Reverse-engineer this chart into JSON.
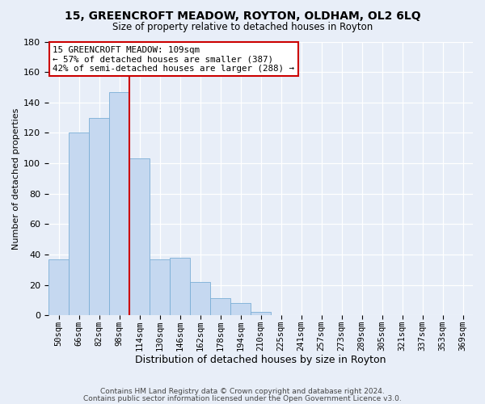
{
  "title1": "15, GREENCROFT MEADOW, ROYTON, OLDHAM, OL2 6LQ",
  "title2": "Size of property relative to detached houses in Royton",
  "xlabel": "Distribution of detached houses by size in Royton",
  "ylabel": "Number of detached properties",
  "categories": [
    "50sqm",
    "66sqm",
    "82sqm",
    "98sqm",
    "114sqm",
    "130sqm",
    "146sqm",
    "162sqm",
    "178sqm",
    "194sqm",
    "210sqm",
    "225sqm",
    "241sqm",
    "257sqm",
    "273sqm",
    "289sqm",
    "305sqm",
    "321sqm",
    "337sqm",
    "353sqm",
    "369sqm"
  ],
  "values": [
    37,
    120,
    130,
    147,
    103,
    37,
    38,
    22,
    11,
    8,
    2,
    0,
    0,
    0,
    0,
    0,
    0,
    0,
    0,
    0,
    0
  ],
  "bar_color": "#c5d8f0",
  "bar_edge_color": "#7aaed6",
  "vline_x": 3.5,
  "vline_color": "#cc0000",
  "annotation_line1": "15 GREENCROFT MEADOW: 109sqm",
  "annotation_line2": "← 57% of detached houses are smaller (387)",
  "annotation_line3": "42% of semi-detached houses are larger (288) →",
  "annotation_box_color": "#ffffff",
  "annotation_box_edge": "#cc0000",
  "footer1": "Contains HM Land Registry data © Crown copyright and database right 2024.",
  "footer2": "Contains public sector information licensed under the Open Government Licence v3.0.",
  "ylim": [
    0,
    180
  ],
  "yticks": [
    0,
    20,
    40,
    60,
    80,
    100,
    120,
    140,
    160,
    180
  ],
  "background_color": "#e8eef8"
}
